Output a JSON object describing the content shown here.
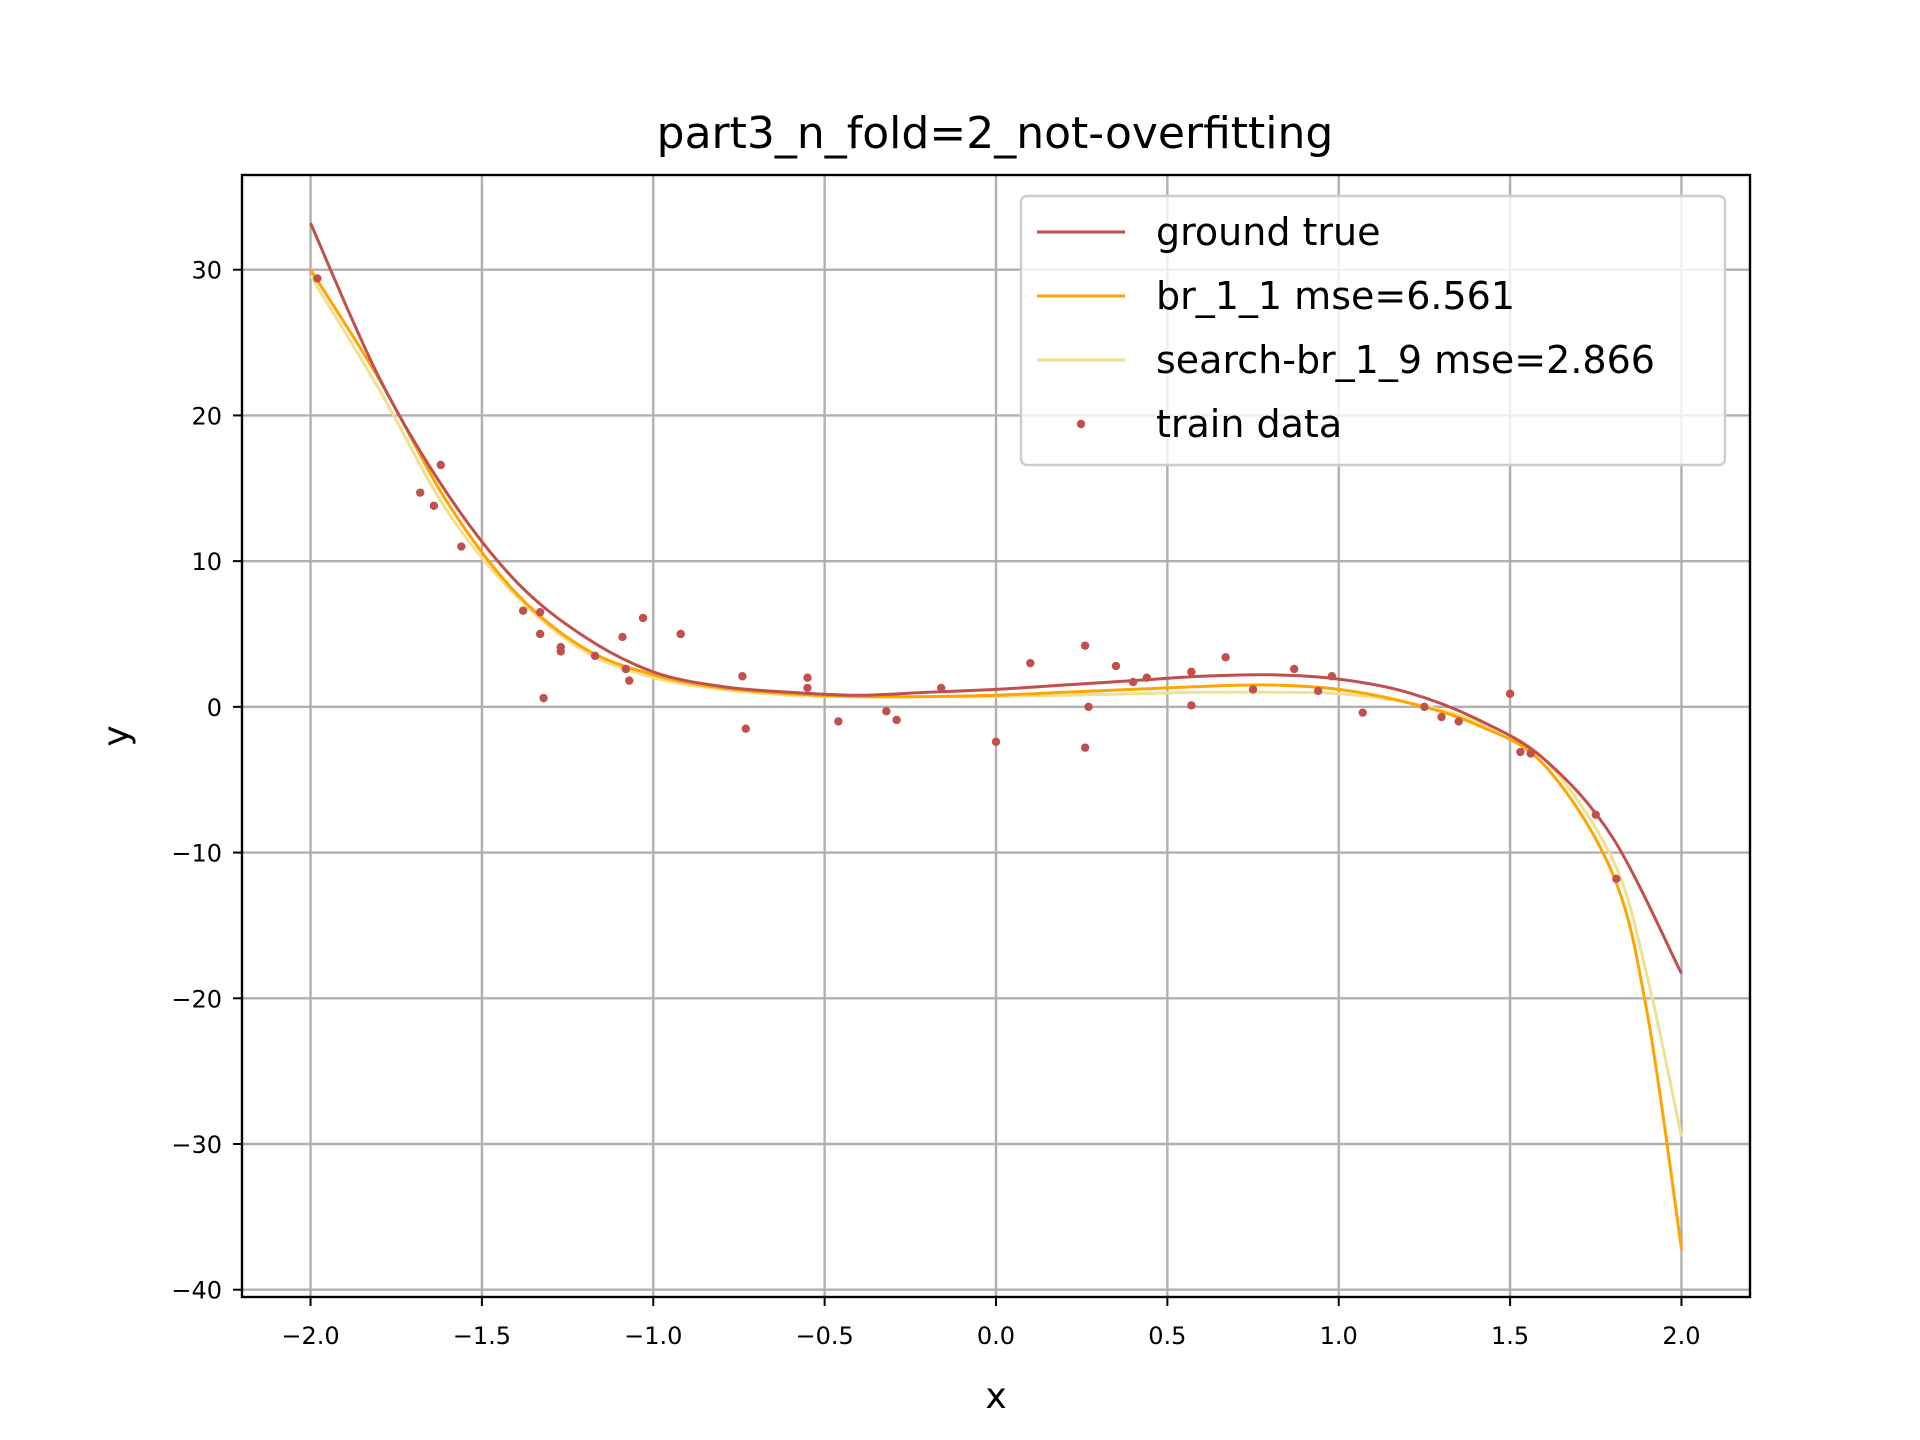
{
  "chart_data": {
    "type": "line",
    "title": "part3_n_fold=2_not-overfitting",
    "xlabel": "x",
    "ylabel": "y",
    "xlim": [
      -2.2,
      2.2
    ],
    "ylim": [
      -40.5,
      36.5
    ],
    "grid": true,
    "legend_position": "top-right",
    "x_ticks": [
      -2.0,
      -1.5,
      -1.0,
      -0.5,
      0.0,
      0.5,
      1.0,
      1.5,
      2.0
    ],
    "x_tick_labels": [
      "−2.0",
      "−1.5",
      "−1.0",
      "−0.5",
      "0.0",
      "0.5",
      "1.0",
      "1.5",
      "2.0"
    ],
    "y_ticks": [
      30,
      20,
      10,
      0,
      -10,
      -20,
      -30,
      -40
    ],
    "y_tick_labels": [
      "30",
      "20",
      "10",
      "0",
      "−10",
      "−20",
      "−30",
      "−40"
    ],
    "series": [
      {
        "name": "ground true",
        "kind": "line",
        "color": "#c0504d",
        "x": [
          -2.0,
          -1.8,
          -1.6,
          -1.4,
          -1.2,
          -1.0,
          -0.8,
          -0.6,
          -0.4,
          -0.2,
          0.0,
          0.2,
          0.4,
          0.6,
          0.8,
          1.0,
          1.2,
          1.4,
          1.6,
          1.8,
          2.0
        ],
        "y": [
          33.2,
          22.6,
          14.6,
          8.6,
          4.8,
          2.4,
          1.4,
          1.0,
          0.8,
          1.0,
          1.2,
          1.5,
          1.8,
          2.1,
          2.2,
          1.9,
          1.0,
          -0.8,
          -3.6,
          -9.0,
          -18.3
        ]
      },
      {
        "name": "br_1_1 mse=6.561",
        "kind": "line",
        "color": "#ffa500",
        "x": [
          -2.0,
          -1.8,
          -1.6,
          -1.4,
          -1.2,
          -1.0,
          -0.8,
          -0.6,
          -0.4,
          -0.2,
          0.0,
          0.2,
          0.4,
          0.6,
          0.8,
          1.0,
          1.2,
          1.4,
          1.6,
          1.8,
          1.9,
          2.0
        ],
        "y": [
          30.0,
          22.5,
          14.0,
          7.8,
          4.0,
          2.2,
          1.3,
          0.9,
          0.7,
          0.7,
          0.8,
          1.0,
          1.2,
          1.4,
          1.5,
          1.2,
          0.3,
          -1.2,
          -4.0,
          -11.5,
          -21.0,
          -37.2
        ]
      },
      {
        "name": "search-br_1_9 mse=2.866",
        "kind": "line",
        "color": "#f0e090",
        "x": [
          -2.0,
          -1.8,
          -1.6,
          -1.4,
          -1.2,
          -1.0,
          -0.8,
          -0.6,
          -0.4,
          -0.2,
          0.0,
          0.2,
          0.4,
          0.6,
          0.8,
          1.0,
          1.2,
          1.4,
          1.6,
          1.8,
          1.9,
          2.0
        ],
        "y": [
          29.6,
          21.8,
          13.4,
          7.6,
          3.8,
          2.0,
          1.2,
          0.8,
          0.7,
          0.7,
          0.7,
          0.8,
          0.9,
          1.0,
          1.0,
          0.9,
          0.3,
          -1.0,
          -3.6,
          -10.5,
          -18.5,
          -29.5
        ]
      },
      {
        "name": "train data",
        "kind": "scatter",
        "color": "#c0504d",
        "x": [
          -1.98,
          -1.68,
          -1.62,
          -1.64,
          -1.56,
          -1.38,
          -1.33,
          -1.33,
          -1.32,
          -1.27,
          -1.27,
          -1.17,
          -1.09,
          -1.08,
          -1.07,
          -1.03,
          -0.92,
          -0.74,
          -0.73,
          -0.55,
          -0.55,
          -0.46,
          -0.32,
          -0.29,
          -0.16,
          0.0,
          0.1,
          0.26,
          0.26,
          0.27,
          0.35,
          0.4,
          0.44,
          0.57,
          0.57,
          0.67,
          0.75,
          0.87,
          0.94,
          0.98,
          1.07,
          1.25,
          1.3,
          1.35,
          1.5,
          1.53,
          1.56,
          1.75,
          1.81
        ],
        "y": [
          29.4,
          14.7,
          16.6,
          13.8,
          11.0,
          6.6,
          6.5,
          5.0,
          0.6,
          4.1,
          3.8,
          3.5,
          4.8,
          2.6,
          1.8,
          6.1,
          5.0,
          2.1,
          -1.5,
          2.0,
          1.3,
          -1.0,
          -0.3,
          -0.9,
          1.3,
          -2.4,
          3.0,
          4.2,
          -2.8,
          0.0,
          2.8,
          1.7,
          2.0,
          2.4,
          0.1,
          3.4,
          1.2,
          2.6,
          1.1,
          2.1,
          -0.4,
          0.0,
          -0.7,
          -1.0,
          0.9,
          -3.1,
          -3.2,
          -7.4,
          -11.8
        ]
      }
    ]
  }
}
